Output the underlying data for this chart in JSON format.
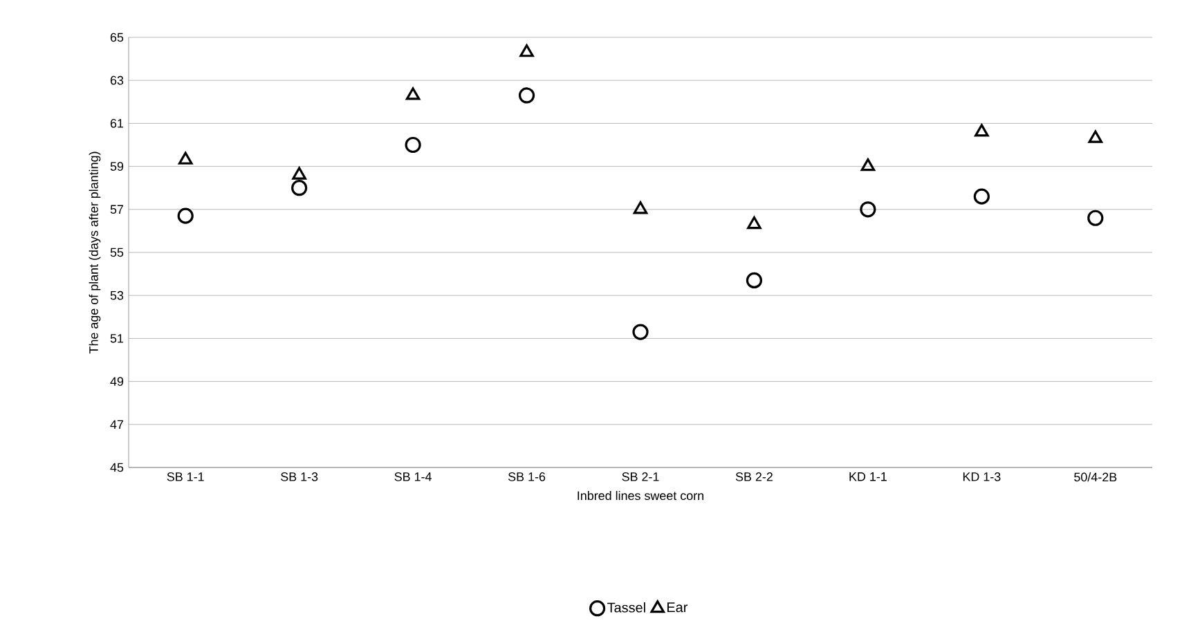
{
  "chart_data": {
    "type": "scatter",
    "xlabel": "Inbred lines sweet corn",
    "ylabel": "The age of plant (days after planting)",
    "categories": [
      "SB 1-1",
      "SB 1-3",
      "SB 1-4",
      "SB 1-6",
      "SB 2-1",
      "SB 2-2",
      "KD 1-1",
      "KD 1-3",
      "50/4-2B"
    ],
    "series": [
      {
        "name": "Tassel",
        "color": "#000000",
        "marker": "circle",
        "values": [
          56.7,
          58.0,
          60.0,
          62.3,
          51.3,
          53.7,
          57.0,
          57.6,
          56.6
        ]
      },
      {
        "name": "Ear",
        "color": "#000000",
        "marker": "triangle",
        "values": [
          59.3,
          58.6,
          62.3,
          64.3,
          57.0,
          56.3,
          59.0,
          60.6,
          60.3
        ]
      }
    ],
    "ylim": [
      45,
      65
    ],
    "yticks": [
      45,
      47,
      49,
      51,
      53,
      55,
      57,
      59,
      61,
      63,
      65
    ],
    "grid": "y",
    "legend": "bottom"
  }
}
